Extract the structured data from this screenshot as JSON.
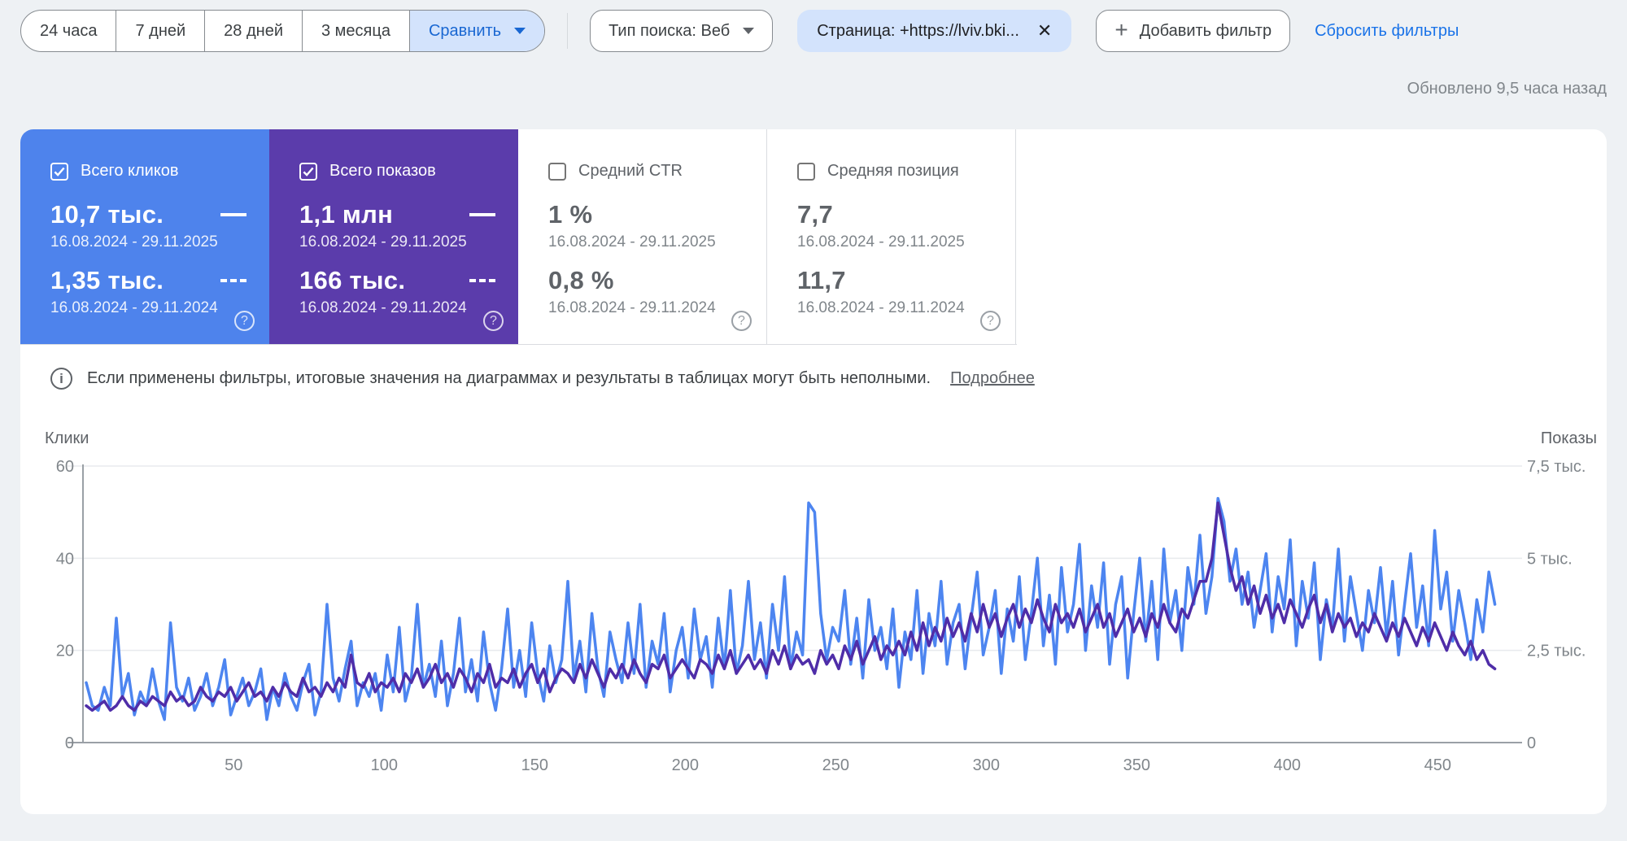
{
  "page": {
    "bg": "#eef1f4",
    "updated_text": "Обновлено 9,5 часа назад"
  },
  "icons": {
    "close": "✕",
    "add": "+",
    "help": "?",
    "info": "i"
  },
  "filters": {
    "ranges": [
      "24 часа",
      "7 дней",
      "28 дней",
      "3 месяца"
    ],
    "compare_label": "Сравнить",
    "search_type": "Тип поиска: Веб",
    "page_filter": "Страница: +https://lviv.bki...",
    "add_filter": "Добавить фильтр",
    "reset_filters": "Сбросить фильтры"
  },
  "cards": [
    {
      "label": "Всего кликов",
      "checked": true,
      "bg": "#4e83ec",
      "value_current": "10,7 тыс.",
      "period_current": "16.08.2024 - 29.11.2025",
      "value_previous": "1,35 тыс.",
      "period_previous": "16.08.2024 - 29.11.2024"
    },
    {
      "label": "Всего показов",
      "checked": true,
      "bg": "#5b3cab",
      "value_current": "1,1 млн",
      "period_current": "16.08.2024 - 29.11.2025",
      "value_previous": "166 тыс.",
      "period_previous": "16.08.2024 - 29.11.2024"
    },
    {
      "label": "Средний CTR",
      "checked": false,
      "bg": "",
      "value_current": "1 %",
      "period_current": "16.08.2024 - 29.11.2025",
      "value_previous": "0,8 %",
      "period_previous": "16.08.2024 - 29.11.2024"
    },
    {
      "label": "Средняя позиция",
      "checked": false,
      "bg": "",
      "value_current": "7,7",
      "period_current": "16.08.2024 - 29.11.2025",
      "value_previous": "11,7",
      "period_previous": "16.08.2024 - 29.11.2024"
    }
  ],
  "notice": {
    "text": "Если применены фильтры, итоговые значения на диаграммах и результаты в таблицах могут быть неполными.",
    "link": "Подробнее"
  },
  "chart_data": {
    "type": "line",
    "left_axis": {
      "title": "Клики",
      "max": 60,
      "ticks": [
        0,
        20,
        40,
        60
      ]
    },
    "right_axis": {
      "title": "Показы",
      "max": 7500,
      "tick_labels": [
        "0",
        "2,5 тыс.",
        "5 тыс.",
        "7,5 тыс."
      ]
    },
    "x_ticks": [
      50,
      100,
      150,
      200,
      250,
      300,
      350,
      400,
      450
    ],
    "x_range": [
      1,
      471
    ],
    "grid": true,
    "x": [
      1,
      3,
      5,
      7,
      9,
      11,
      13,
      15,
      17,
      19,
      21,
      23,
      25,
      27,
      29,
      31,
      33,
      35,
      37,
      39,
      41,
      43,
      45,
      47,
      49,
      51,
      53,
      55,
      57,
      59,
      61,
      63,
      65,
      67,
      69,
      71,
      73,
      75,
      77,
      79,
      81,
      83,
      85,
      87,
      89,
      91,
      93,
      95,
      97,
      99,
      101,
      103,
      105,
      107,
      109,
      111,
      113,
      115,
      117,
      119,
      121,
      123,
      125,
      127,
      129,
      131,
      133,
      135,
      137,
      139,
      141,
      143,
      145,
      147,
      149,
      151,
      153,
      155,
      157,
      159,
      161,
      163,
      165,
      167,
      169,
      171,
      173,
      175,
      177,
      179,
      181,
      183,
      185,
      187,
      189,
      191,
      193,
      195,
      197,
      199,
      201,
      203,
      205,
      207,
      209,
      211,
      213,
      215,
      217,
      219,
      221,
      223,
      225,
      227,
      229,
      231,
      233,
      235,
      237,
      239,
      241,
      243,
      245,
      247,
      249,
      251,
      253,
      255,
      257,
      259,
      261,
      263,
      265,
      267,
      269,
      271,
      273,
      275,
      277,
      279,
      281,
      283,
      285,
      287,
      289,
      291,
      293,
      295,
      297,
      299,
      301,
      303,
      305,
      307,
      309,
      311,
      313,
      315,
      317,
      319,
      321,
      323,
      325,
      327,
      329,
      331,
      333,
      335,
      337,
      339,
      341,
      343,
      345,
      347,
      349,
      351,
      353,
      355,
      357,
      359,
      361,
      363,
      365,
      367,
      369,
      371,
      373,
      375,
      377,
      379,
      381,
      383,
      385,
      387,
      389,
      391,
      393,
      395,
      397,
      399,
      401,
      403,
      405,
      407,
      409,
      411,
      413,
      415,
      417,
      419,
      421,
      423,
      425,
      427,
      429,
      431,
      433,
      435,
      437,
      439,
      441,
      443,
      445,
      447,
      449,
      451,
      453,
      455,
      457,
      459,
      461,
      463,
      465,
      467,
      469
    ],
    "series": [
      {
        "name": "Клики",
        "axis": "left",
        "color": "#4d85f0",
        "values": [
          13,
          8,
          7,
          12,
          8,
          27,
          10,
          15,
          6,
          11,
          8,
          16,
          9,
          5,
          26,
          12,
          9,
          14,
          7,
          10,
          15,
          8,
          12,
          18,
          6,
          10,
          14,
          8,
          11,
          16,
          5,
          12,
          8,
          15,
          10,
          7,
          13,
          17,
          6,
          11,
          30,
          14,
          9,
          16,
          22,
          8,
          13,
          10,
          15,
          7,
          19,
          11,
          25,
          9,
          14,
          30,
          12,
          17,
          10,
          22,
          8,
          15,
          27,
          11,
          18,
          9,
          24,
          13,
          7,
          16,
          29,
          12,
          20,
          10,
          26,
          15,
          9,
          21,
          13,
          18,
          35,
          14,
          22,
          11,
          28,
          16,
          10,
          24,
          18,
          13,
          26,
          15,
          30,
          12,
          22,
          17,
          28,
          11,
          20,
          25,
          14,
          29,
          18,
          23,
          12,
          27,
          16,
          33,
          15,
          21,
          35,
          18,
          26,
          14,
          30,
          20,
          36,
          16,
          24,
          19,
          52,
          50,
          28,
          18,
          25,
          22,
          33,
          17,
          27,
          14,
          31,
          20,
          25,
          16,
          29,
          12,
          24,
          18,
          33,
          15,
          28,
          21,
          35,
          17,
          26,
          30,
          16,
          27,
          37,
          19,
          25,
          33,
          15,
          29,
          22,
          36,
          18,
          28,
          40,
          21,
          32,
          17,
          38,
          24,
          30,
          43,
          20,
          34,
          25,
          39,
          17,
          30,
          36,
          14,
          28,
          40,
          22,
          35,
          18,
          42,
          26,
          33,
          20,
          38,
          30,
          45,
          28,
          36,
          53,
          48,
          35,
          42,
          30,
          37,
          25,
          33,
          41,
          24,
          36,
          29,
          44,
          21,
          35,
          27,
          39,
          18,
          31,
          25,
          42,
          22,
          36,
          28,
          20,
          33,
          26,
          38,
          23,
          35,
          19,
          30,
          41,
          25,
          34,
          21,
          46,
          29,
          37,
          22,
          33,
          26,
          18,
          31,
          24,
          37,
          30
        ]
      },
      {
        "name": "Показы",
        "axis": "right",
        "color": "#4f2da8",
        "values": [
          1000,
          875,
          1000,
          1125,
          875,
          1000,
          1250,
          1000,
          875,
          1125,
          1000,
          1250,
          1125,
          1000,
          1375,
          1125,
          1250,
          1000,
          1125,
          1500,
          1250,
          1125,
          1375,
          1250,
          1500,
          1125,
          1375,
          1625,
          1250,
          1375,
          1125,
          1500,
          1250,
          1625,
          1375,
          1250,
          1750,
          1375,
          1500,
          1250,
          1625,
          1375,
          1750,
          1500,
          2375,
          1625,
          1500,
          1875,
          1375,
          1625,
          1500,
          1750,
          1375,
          1875,
          1625,
          2000,
          1500,
          1750,
          2125,
          1625,
          1875,
          1500,
          2000,
          1750,
          1375,
          1875,
          1625,
          2125,
          1500,
          1750,
          1625,
          2000,
          1500,
          1875,
          2125,
          1625,
          2000,
          1375,
          1750,
          2000,
          1875,
          1625,
          2125,
          1750,
          2250,
          1875,
          1500,
          2000,
          1750,
          2125,
          1750,
          2250,
          1875,
          1625,
          2125,
          2000,
          2375,
          1750,
          2000,
          2250,
          2000,
          1750,
          2250,
          2125,
          1875,
          2375,
          2000,
          2500,
          1875,
          2125,
          2375,
          2000,
          2250,
          1875,
          2500,
          2125,
          2625,
          2000,
          2375,
          2125,
          2250,
          1875,
          2500,
          2125,
          2375,
          2000,
          2625,
          2250,
          2750,
          2125,
          2500,
          2875,
          2250,
          2625,
          2375,
          2750,
          2375,
          3000,
          2500,
          3250,
          2625,
          3125,
          2750,
          3375,
          2875,
          3250,
          2750,
          3500,
          3000,
          3750,
          3125,
          3500,
          2875,
          3375,
          3750,
          3125,
          3625,
          3250,
          3875,
          3375,
          3000,
          3750,
          3250,
          3500,
          3125,
          3625,
          3000,
          3375,
          3750,
          3125,
          3500,
          2875,
          3250,
          3625,
          3000,
          3375,
          2875,
          3500,
          3125,
          3750,
          3250,
          3000,
          3625,
          3375,
          3875,
          4375,
          4375,
          5000,
          6500,
          5625,
          4750,
          4125,
          4500,
          3750,
          4250,
          3500,
          4000,
          3375,
          3750,
          3250,
          3875,
          3500,
          3125,
          3625,
          4000,
          3250,
          3750,
          3000,
          3500,
          3125,
          3375,
          2875,
          3250,
          3000,
          3500,
          3125,
          2750,
          3250,
          2875,
          3375,
          3000,
          2625,
          3125,
          2750,
          3250,
          2875,
          2500,
          3000,
          2625,
          2375,
          2750,
          2250,
          2500,
          2125,
          2000
        ]
      }
    ]
  }
}
